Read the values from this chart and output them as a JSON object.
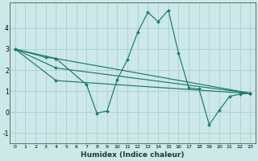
{
  "background_color": "#cce8e8",
  "grid_color": "#aacfcf",
  "line_color": "#1a7a6e",
  "xlabel": "Humidex (Indice chaleur)",
  "xlim": [
    -0.5,
    23.5
  ],
  "ylim": [
    -1.5,
    5.2
  ],
  "yticks": [
    -1,
    0,
    1,
    2,
    3,
    4
  ],
  "xticks": [
    0,
    1,
    2,
    3,
    4,
    5,
    6,
    7,
    8,
    9,
    10,
    11,
    12,
    13,
    14,
    15,
    16,
    17,
    18,
    19,
    20,
    21,
    22,
    23
  ],
  "series": [
    {
      "x": [
        0,
        3,
        4,
        7,
        8,
        9,
        10,
        11,
        12,
        13,
        14,
        15,
        16,
        17,
        18,
        19,
        20,
        21,
        22,
        23
      ],
      "y": [
        3.0,
        2.6,
        2.55,
        1.3,
        -0.05,
        0.05,
        1.55,
        2.5,
        3.8,
        4.75,
        4.3,
        4.85,
        2.8,
        1.15,
        1.1,
        -0.6,
        0.1,
        0.75,
        0.85,
        0.9
      ]
    },
    {
      "comment": "straight line 1: 0 -> 4 -> 23",
      "x": [
        0,
        4,
        23
      ],
      "y": [
        3.0,
        2.55,
        0.9
      ]
    },
    {
      "comment": "straight line 2: 0 -> 4 -> 23",
      "x": [
        0,
        4,
        23
      ],
      "y": [
        3.0,
        2.1,
        0.9
      ]
    },
    {
      "x": [
        0,
        4,
        23
      ],
      "y": [
        3.0,
        1.5,
        0.88
      ]
    }
  ]
}
